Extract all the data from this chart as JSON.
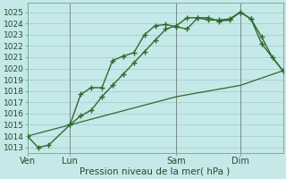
{
  "xlabel": "Pression niveau de la mer( hPa )",
  "ylim": [
    1012.5,
    1025.8
  ],
  "yticks": [
    1013,
    1014,
    1015,
    1016,
    1017,
    1018,
    1019,
    1020,
    1021,
    1022,
    1023,
    1024,
    1025
  ],
  "xlim": [
    0,
    24
  ],
  "bg_color": "#c5e8e8",
  "grid_color": "#a8d0d0",
  "line_color": "#2d6a2d",
  "vline_color": "#7a8a8a",
  "xtick_labels": [
    "Ven",
    "Lun",
    "Sam",
    "Dim"
  ],
  "xtick_positions": [
    0,
    4,
    14,
    20
  ],
  "vline_positions": [
    0,
    4,
    14,
    20
  ],
  "series1_x": [
    0,
    1,
    2,
    4,
    5,
    6,
    7,
    8,
    9,
    10,
    11,
    12,
    13,
    14,
    15,
    16,
    17,
    18,
    19,
    20,
    21,
    22,
    23,
    24
  ],
  "series1_y": [
    1014.0,
    1013.0,
    1013.2,
    1015.0,
    1017.7,
    1018.3,
    1018.3,
    1020.7,
    1021.1,
    1021.4,
    1023.0,
    1023.8,
    1023.9,
    1023.7,
    1023.5,
    1024.5,
    1024.5,
    1024.2,
    1024.3,
    1025.0,
    1024.4,
    1022.8,
    1021.0,
    1019.8
  ],
  "series2_x": [
    4,
    5,
    6,
    7,
    8,
    9,
    10,
    11,
    12,
    13,
    14,
    15,
    16,
    17,
    18,
    19,
    20,
    21,
    22,
    24
  ],
  "series2_y": [
    1015.0,
    1015.8,
    1016.3,
    1017.5,
    1018.5,
    1019.5,
    1020.5,
    1021.5,
    1022.5,
    1023.5,
    1023.8,
    1024.5,
    1024.5,
    1024.3,
    1024.3,
    1024.4,
    1025.0,
    1024.4,
    1022.2,
    1019.8
  ],
  "series3_x": [
    0,
    4,
    14,
    20,
    24
  ],
  "series3_y": [
    1014.0,
    1015.0,
    1017.5,
    1018.5,
    1019.8
  ]
}
